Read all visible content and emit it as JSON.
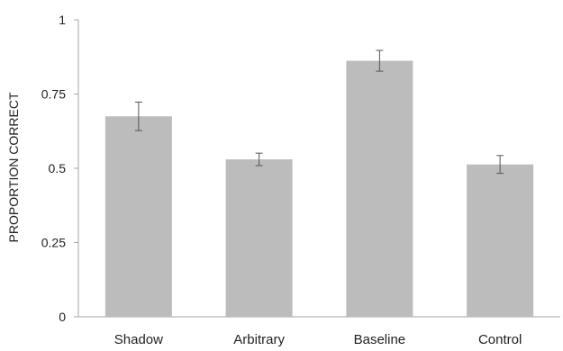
{
  "chart_data": {
    "type": "bar",
    "title": "",
    "xlabel": "",
    "ylabel": "PROPORTION CORRECT",
    "ylim": [
      0,
      1
    ],
    "yticks": [
      0,
      0.25,
      0.5,
      0.75,
      1
    ],
    "ytick_labels": [
      "0",
      "0.25",
      "0.5",
      "0.75",
      "1"
    ],
    "categories": [
      "Shadow",
      "Arbitrary",
      "Baseline",
      "Control"
    ],
    "values": [
      0.675,
      0.53,
      0.862,
      0.513
    ],
    "error_bars": [
      0.048,
      0.021,
      0.035,
      0.03
    ],
    "grid": false,
    "legend": "none",
    "colors": {
      "bar": "#bcbcbc",
      "error_bar": "#555555",
      "axis": "#a6a6a6"
    }
  }
}
